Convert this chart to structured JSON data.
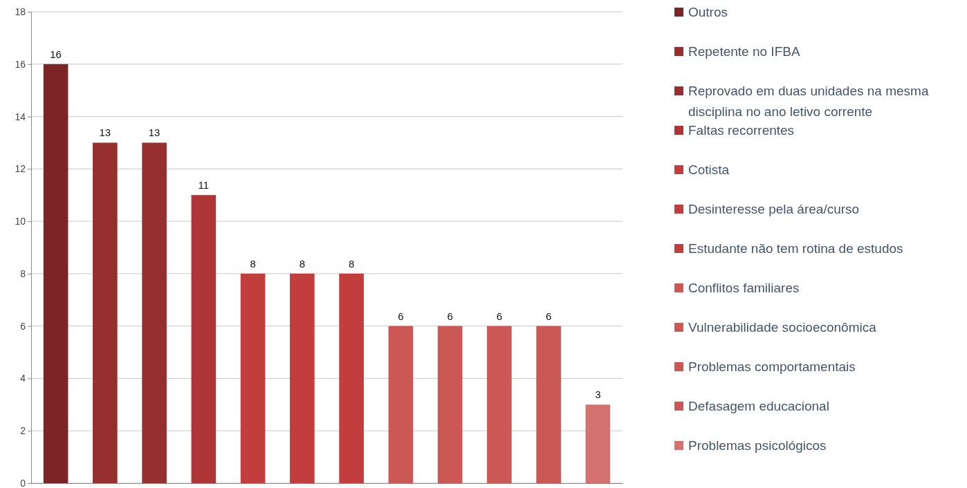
{
  "chart_data": {
    "type": "bar",
    "stacked": true,
    "categories": [
      null,
      null,
      null,
      null,
      null,
      null,
      null,
      null,
      null,
      null,
      null,
      null
    ],
    "series": [
      {
        "name": "Outros",
        "color": "#7b2527",
        "values": [
          16,
          null,
          null,
          null,
          null,
          null,
          null,
          null,
          null,
          null,
          null,
          null
        ]
      },
      {
        "name": "Repetente no IFBA",
        "color": "#962f2f",
        "values": [
          null,
          13,
          null,
          null,
          null,
          null,
          null,
          null,
          null,
          null,
          null,
          null
        ]
      },
      {
        "name": "Reprovado em duas unidades na mesma disciplina no ano letivo corrente",
        "color": "#962f2f",
        "values": [
          null,
          null,
          13,
          null,
          null,
          null,
          null,
          null,
          null,
          null,
          null,
          null
        ]
      },
      {
        "name": "Faltas recorrentes",
        "color": "#ad3535",
        "values": [
          null,
          null,
          null,
          11,
          null,
          null,
          null,
          null,
          null,
          null,
          null,
          null
        ]
      },
      {
        "name": "Cotista",
        "color": "#c23d3d",
        "values": [
          null,
          null,
          null,
          null,
          8,
          null,
          null,
          null,
          null,
          null,
          null,
          null
        ]
      },
      {
        "name": "Desinteresse pela área/curso",
        "color": "#c23d3d",
        "values": [
          null,
          null,
          null,
          null,
          null,
          8,
          null,
          null,
          null,
          null,
          null,
          null
        ]
      },
      {
        "name": "Estudante não tem rotina de estudos",
        "color": "#c23d3d",
        "values": [
          null,
          null,
          null,
          null,
          null,
          null,
          8,
          null,
          null,
          null,
          null,
          null
        ]
      },
      {
        "name": "Conflitos familiares",
        "color": "#cc5855",
        "values": [
          null,
          null,
          null,
          null,
          null,
          null,
          null,
          6,
          null,
          null,
          null,
          null
        ]
      },
      {
        "name": "Vulnerabilidade socioeconômica",
        "color": "#cc5855",
        "values": [
          null,
          null,
          null,
          null,
          null,
          null,
          null,
          null,
          6,
          null,
          null,
          null
        ]
      },
      {
        "name": "Problemas comportamentais",
        "color": "#cc5855",
        "values": [
          null,
          null,
          null,
          null,
          null,
          null,
          null,
          null,
          null,
          6,
          null,
          null
        ]
      },
      {
        "name": "Defasagem educacional",
        "color": "#cc5855",
        "values": [
          null,
          null,
          null,
          null,
          null,
          null,
          null,
          null,
          null,
          null,
          6,
          null
        ]
      },
      {
        "name": "Problemas psicológicos",
        "color": "#d47270",
        "values": [
          null,
          null,
          null,
          null,
          null,
          null,
          null,
          null,
          null,
          null,
          null,
          3
        ]
      }
    ],
    "ylim": [
      0,
      18
    ],
    "yticks": [
      0,
      2,
      4,
      6,
      8,
      10,
      12,
      14,
      16,
      18
    ],
    "grid": "y",
    "data_labels": true,
    "legend": "right",
    "tick_labels": "y"
  }
}
